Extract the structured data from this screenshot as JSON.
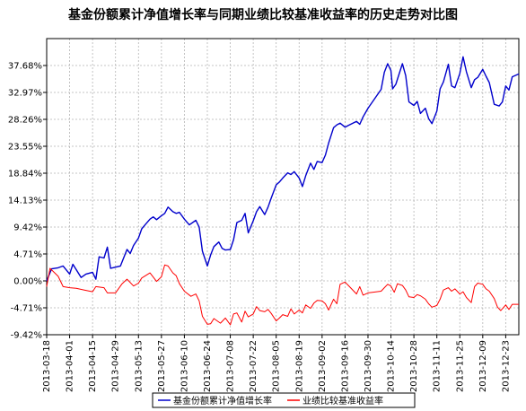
{
  "chart_data": {
    "type": "line",
    "title": "基金份额累计净值增长率与同期业绩比较基准收益率的历史走势对比图",
    "xlabel": "",
    "ylabel": "",
    "grid": true,
    "legend_position": "bottom",
    "y_tick_labels": [
      "37.68%",
      "32.97%",
      "28.26%",
      "23.55%",
      "18.84%",
      "14.13%",
      "9.42%",
      "4.71%",
      "0.00%",
      "-4.71%",
      "-9.42%"
    ],
    "y_tick_values": [
      37.68,
      32.97,
      28.26,
      23.55,
      18.84,
      14.13,
      9.42,
      4.71,
      0.0,
      -4.71,
      -9.42
    ],
    "ylim": [
      -9.42,
      42.39
    ],
    "x_tick_labels": [
      "2013-03-18",
      "2013-04-01",
      "2013-04-15",
      "2013-04-29",
      "2013-05-13",
      "2013-05-27",
      "2013-06-10",
      "2013-06-24",
      "2013-07-08",
      "2013-07-22",
      "2013-08-05",
      "2013-08-19",
      "2013-09-02",
      "2013-09-16",
      "2013-09-30",
      "2013-10-14",
      "2013-10-28",
      "2013-11-11",
      "2013-11-25",
      "2013-12-09",
      "2013-12-23"
    ],
    "x_tick_values": [
      "2013-03-18",
      "2013-04-01",
      "2013-04-15",
      "2013-04-29",
      "2013-05-13",
      "2013-05-27",
      "2013-06-10",
      "2013-06-24",
      "2013-07-08",
      "2013-07-22",
      "2013-08-05",
      "2013-08-19",
      "2013-09-02",
      "2013-09-16",
      "2013-09-30",
      "2013-10-14",
      "2013-10-28",
      "2013-11-11",
      "2013-11-25",
      "2013-12-09",
      "2013-12-23"
    ],
    "xlim": [
      "2013-03-18",
      "2013-12-31"
    ],
    "series": [
      {
        "name": "基金份额累计净值增长率",
        "color": "#0000cc",
        "points": [
          [
            "2013-03-18",
            0.0
          ],
          [
            "2013-03-21",
            2.1
          ],
          [
            "2013-03-25",
            2.3
          ],
          [
            "2013-03-28",
            2.6
          ],
          [
            "2013-04-01",
            1.2
          ],
          [
            "2013-04-03",
            2.9
          ],
          [
            "2013-04-08",
            0.6
          ],
          [
            "2013-04-11",
            1.2
          ],
          [
            "2013-04-15",
            1.5
          ],
          [
            "2013-04-17",
            0.3
          ],
          [
            "2013-04-19",
            4.2
          ],
          [
            "2013-04-22",
            4.0
          ],
          [
            "2013-04-24",
            5.9
          ],
          [
            "2013-04-26",
            2.2
          ],
          [
            "2013-04-29",
            2.4
          ],
          [
            "2013-05-02",
            2.6
          ],
          [
            "2013-05-06",
            5.5
          ],
          [
            "2013-05-08",
            4.8
          ],
          [
            "2013-05-10",
            6.2
          ],
          [
            "2013-05-13",
            7.5
          ],
          [
            "2013-05-15",
            9.1
          ],
          [
            "2013-05-17",
            9.8
          ],
          [
            "2013-05-20",
            10.8
          ],
          [
            "2013-05-22",
            11.2
          ],
          [
            "2013-05-24",
            10.7
          ],
          [
            "2013-05-27",
            11.4
          ],
          [
            "2013-05-29",
            11.8
          ],
          [
            "2013-05-31",
            12.9
          ],
          [
            "2013-06-03",
            12.1
          ],
          [
            "2013-06-05",
            11.8
          ],
          [
            "2013-06-07",
            12.0
          ],
          [
            "2013-06-10",
            10.8
          ],
          [
            "2013-06-13",
            9.8
          ],
          [
            "2013-06-17",
            10.6
          ],
          [
            "2013-06-19",
            9.4
          ],
          [
            "2013-06-21",
            5.2
          ],
          [
            "2013-06-24",
            2.6
          ],
          [
            "2013-06-26",
            4.5
          ],
          [
            "2013-06-28",
            6.0
          ],
          [
            "2013-07-01",
            6.8
          ],
          [
            "2013-07-03",
            5.7
          ],
          [
            "2013-07-05",
            5.4
          ],
          [
            "2013-07-08",
            5.5
          ],
          [
            "2013-07-10",
            7.2
          ],
          [
            "2013-07-12",
            10.2
          ],
          [
            "2013-07-15",
            10.6
          ],
          [
            "2013-07-17",
            11.8
          ],
          [
            "2013-07-19",
            8.4
          ],
          [
            "2013-07-22",
            10.5
          ],
          [
            "2013-07-24",
            12.1
          ],
          [
            "2013-07-26",
            13.0
          ],
          [
            "2013-07-29",
            11.6
          ],
          [
            "2013-07-31",
            12.9
          ],
          [
            "2013-08-02",
            14.5
          ],
          [
            "2013-08-05",
            16.8
          ],
          [
            "2013-08-07",
            17.3
          ],
          [
            "2013-08-09",
            18.0
          ],
          [
            "2013-08-12",
            18.9
          ],
          [
            "2013-08-14",
            18.6
          ],
          [
            "2013-08-16",
            19.1
          ],
          [
            "2013-08-19",
            18.0
          ],
          [
            "2013-08-21",
            16.5
          ],
          [
            "2013-08-23",
            18.4
          ],
          [
            "2013-08-26",
            20.6
          ],
          [
            "2013-08-28",
            19.5
          ],
          [
            "2013-08-30",
            20.9
          ],
          [
            "2013-09-02",
            20.7
          ],
          [
            "2013-09-04",
            22.0
          ],
          [
            "2013-09-06",
            24.1
          ],
          [
            "2013-09-09",
            26.8
          ],
          [
            "2013-09-11",
            27.3
          ],
          [
            "2013-09-13",
            27.6
          ],
          [
            "2013-09-16",
            26.9
          ],
          [
            "2013-09-18",
            27.2
          ],
          [
            "2013-09-23",
            27.9
          ],
          [
            "2013-09-25",
            27.4
          ],
          [
            "2013-09-27",
            28.7
          ],
          [
            "2013-09-30",
            30.2
          ],
          [
            "2013-10-08",
            33.5
          ],
          [
            "2013-10-10",
            36.5
          ],
          [
            "2013-10-12",
            38.0
          ],
          [
            "2013-10-14",
            36.8
          ],
          [
            "2013-10-15",
            33.6
          ],
          [
            "2013-10-17",
            34.4
          ],
          [
            "2013-10-21",
            38.0
          ],
          [
            "2013-10-23",
            35.9
          ],
          [
            "2013-10-25",
            31.3
          ],
          [
            "2013-10-28",
            30.7
          ],
          [
            "2013-10-30",
            31.4
          ],
          [
            "2013-11-01",
            29.3
          ],
          [
            "2013-11-04",
            30.2
          ],
          [
            "2013-11-06",
            28.4
          ],
          [
            "2013-11-08",
            27.5
          ],
          [
            "2013-11-11",
            29.7
          ],
          [
            "2013-11-13",
            33.6
          ],
          [
            "2013-11-15",
            34.8
          ],
          [
            "2013-11-18",
            37.9
          ],
          [
            "2013-11-20",
            34.1
          ],
          [
            "2013-11-22",
            33.8
          ],
          [
            "2013-11-25",
            36.3
          ],
          [
            "2013-11-27",
            39.2
          ],
          [
            "2013-11-29",
            36.6
          ],
          [
            "2013-12-02",
            33.8
          ],
          [
            "2013-12-04",
            35.2
          ],
          [
            "2013-12-06",
            35.6
          ],
          [
            "2013-12-09",
            37.0
          ],
          [
            "2013-12-11",
            35.8
          ],
          [
            "2013-12-13",
            34.7
          ],
          [
            "2013-12-16",
            30.9
          ],
          [
            "2013-12-19",
            30.6
          ],
          [
            "2013-12-21",
            31.3
          ],
          [
            "2013-12-23",
            34.1
          ],
          [
            "2013-12-25",
            33.4
          ],
          [
            "2013-12-27",
            35.7
          ],
          [
            "2013-12-31",
            36.2
          ]
        ]
      },
      {
        "name": "业绩比较基准收益率",
        "color": "#ff0000",
        "points": [
          [
            "2013-03-18",
            -1.0
          ],
          [
            "2013-03-20",
            2.2
          ],
          [
            "2013-03-25",
            0.8
          ],
          [
            "2013-03-28",
            -1.0
          ],
          [
            "2013-04-01",
            -1.2
          ],
          [
            "2013-04-05",
            -1.3
          ],
          [
            "2013-04-10",
            -1.6
          ],
          [
            "2013-04-15",
            -1.9
          ],
          [
            "2013-04-17",
            -1.0
          ],
          [
            "2013-04-22",
            -1.2
          ],
          [
            "2013-04-24",
            -2.1
          ],
          [
            "2013-04-29",
            -2.1
          ],
          [
            "2013-05-03",
            -0.5
          ],
          [
            "2013-05-06",
            0.3
          ],
          [
            "2013-05-10",
            -0.9
          ],
          [
            "2013-05-13",
            -0.4
          ],
          [
            "2013-05-15",
            0.5
          ],
          [
            "2013-05-20",
            1.4
          ],
          [
            "2013-05-24",
            -0.1
          ],
          [
            "2013-05-27",
            0.7
          ],
          [
            "2013-05-29",
            2.8
          ],
          [
            "2013-05-31",
            2.6
          ],
          [
            "2013-06-03",
            1.4
          ],
          [
            "2013-06-05",
            0.9
          ],
          [
            "2013-06-07",
            -0.5
          ],
          [
            "2013-06-10",
            -1.8
          ],
          [
            "2013-06-14",
            -2.7
          ],
          [
            "2013-06-17",
            -2.3
          ],
          [
            "2013-06-19",
            -3.5
          ],
          [
            "2013-06-21",
            -6.2
          ],
          [
            "2013-06-24",
            -7.6
          ],
          [
            "2013-06-26",
            -7.5
          ],
          [
            "2013-06-28",
            -6.6
          ],
          [
            "2013-07-02",
            -7.4
          ],
          [
            "2013-07-05",
            -6.5
          ],
          [
            "2013-07-08",
            -7.7
          ],
          [
            "2013-07-10",
            -5.8
          ],
          [
            "2013-07-12",
            -5.6
          ],
          [
            "2013-07-15",
            -7.2
          ],
          [
            "2013-07-17",
            -5.3
          ],
          [
            "2013-07-19",
            -6.3
          ],
          [
            "2013-07-22",
            -5.8
          ],
          [
            "2013-07-24",
            -4.5
          ],
          [
            "2013-07-26",
            -5.2
          ],
          [
            "2013-07-29",
            -5.4
          ],
          [
            "2013-07-31",
            -5.0
          ],
          [
            "2013-08-02",
            -5.7
          ],
          [
            "2013-08-05",
            -7.0
          ],
          [
            "2013-08-07",
            -6.5
          ],
          [
            "2013-08-09",
            -5.9
          ],
          [
            "2013-08-12",
            -6.2
          ],
          [
            "2013-08-14",
            -4.9
          ],
          [
            "2013-08-16",
            -5.8
          ],
          [
            "2013-08-19",
            -5.1
          ],
          [
            "2013-08-21",
            -5.6
          ],
          [
            "2013-08-23",
            -4.2
          ],
          [
            "2013-08-26",
            -4.8
          ],
          [
            "2013-08-28",
            -3.9
          ],
          [
            "2013-08-30",
            -3.4
          ],
          [
            "2013-09-02",
            -3.5
          ],
          [
            "2013-09-04",
            -4.0
          ],
          [
            "2013-09-06",
            -5.1
          ],
          [
            "2013-09-09",
            -3.2
          ],
          [
            "2013-09-11",
            -4.0
          ],
          [
            "2013-09-13",
            -0.6
          ],
          [
            "2013-09-16",
            -0.2
          ],
          [
            "2013-09-18",
            -0.8
          ],
          [
            "2013-09-20",
            -1.4
          ],
          [
            "2013-09-23",
            -2.3
          ],
          [
            "2013-09-25",
            -1.0
          ],
          [
            "2013-09-27",
            -2.5
          ],
          [
            "2013-09-30",
            -2.1
          ],
          [
            "2013-10-08",
            -1.8
          ],
          [
            "2013-10-10",
            -1.2
          ],
          [
            "2013-10-12",
            -0.6
          ],
          [
            "2013-10-14",
            -0.9
          ],
          [
            "2013-10-16",
            -2.0
          ],
          [
            "2013-10-18",
            -0.5
          ],
          [
            "2013-10-21",
            -0.8
          ],
          [
            "2013-10-23",
            -1.6
          ],
          [
            "2013-10-25",
            -2.8
          ],
          [
            "2013-10-28",
            -2.9
          ],
          [
            "2013-10-30",
            -2.4
          ],
          [
            "2013-11-01",
            -2.6
          ],
          [
            "2013-11-04",
            -3.2
          ],
          [
            "2013-11-06",
            -4.0
          ],
          [
            "2013-11-08",
            -4.6
          ],
          [
            "2013-11-11",
            -4.3
          ],
          [
            "2013-11-13",
            -3.2
          ],
          [
            "2013-11-15",
            -1.6
          ],
          [
            "2013-11-18",
            -1.2
          ],
          [
            "2013-11-20",
            -1.8
          ],
          [
            "2013-11-22",
            -1.4
          ],
          [
            "2013-11-25",
            -2.3
          ],
          [
            "2013-11-27",
            -1.9
          ],
          [
            "2013-11-29",
            -2.9
          ],
          [
            "2013-12-02",
            -3.8
          ],
          [
            "2013-12-04",
            -1.0
          ],
          [
            "2013-12-06",
            -0.4
          ],
          [
            "2013-12-09",
            -0.6
          ],
          [
            "2013-12-11",
            -1.4
          ],
          [
            "2013-12-13",
            -1.8
          ],
          [
            "2013-12-16",
            -3.1
          ],
          [
            "2013-12-18",
            -4.6
          ],
          [
            "2013-12-20",
            -5.2
          ],
          [
            "2013-12-23",
            -4.2
          ],
          [
            "2013-12-25",
            -5.0
          ],
          [
            "2013-12-27",
            -4.1
          ],
          [
            "2013-12-31",
            -4.1
          ]
        ]
      }
    ]
  }
}
